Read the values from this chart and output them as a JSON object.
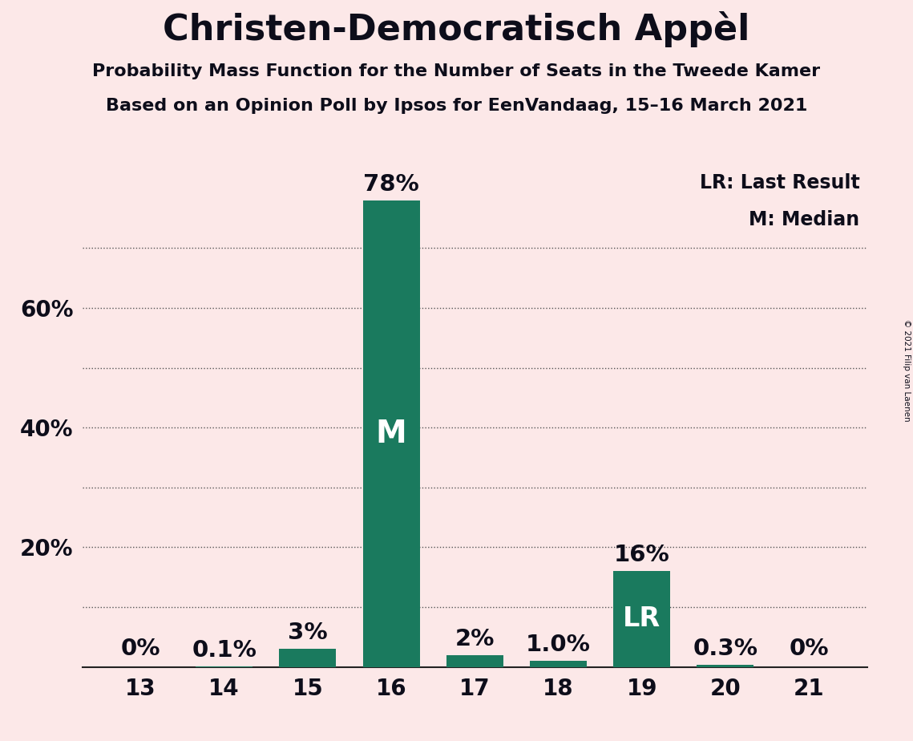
{
  "title": "Christen-Democratisch Appèl",
  "subtitle1": "Probability Mass Function for the Number of Seats in the Tweede Kamer",
  "subtitle2": "Based on an Opinion Poll by Ipsos for EenVandaag, 15–16 March 2021",
  "copyright": "© 2021 Filip van Laenen",
  "categories": [
    13,
    14,
    15,
    16,
    17,
    18,
    19,
    20,
    21
  ],
  "values": [
    0.0,
    0.1,
    3.0,
    78.0,
    2.0,
    1.0,
    16.0,
    0.3,
    0.0
  ],
  "labels": [
    "0%",
    "0.1%",
    "3%",
    "78%",
    "2%",
    "1.0%",
    "16%",
    "0.3%",
    "0%"
  ],
  "bar_color": "#1a7a5e",
  "background_color": "#fce8e8",
  "median_bar": 16,
  "last_result_bar": 19,
  "legend_text1": "LR: Last Result",
  "legend_text2": "M: Median",
  "ytick_positions": [
    10,
    20,
    30,
    40,
    50,
    60,
    70
  ],
  "ytick_labels": [
    "",
    "20%",
    "",
    "40%",
    "",
    "60%",
    ""
  ],
  "grid_positions": [
    10,
    20,
    30,
    40,
    50,
    60,
    70
  ],
  "ymax": 83,
  "title_fontsize": 32,
  "subtitle_fontsize": 16,
  "label_fontsize": 17,
  "tick_fontsize": 20,
  "annotation_fontsize": 21,
  "bar_width": 0.68
}
